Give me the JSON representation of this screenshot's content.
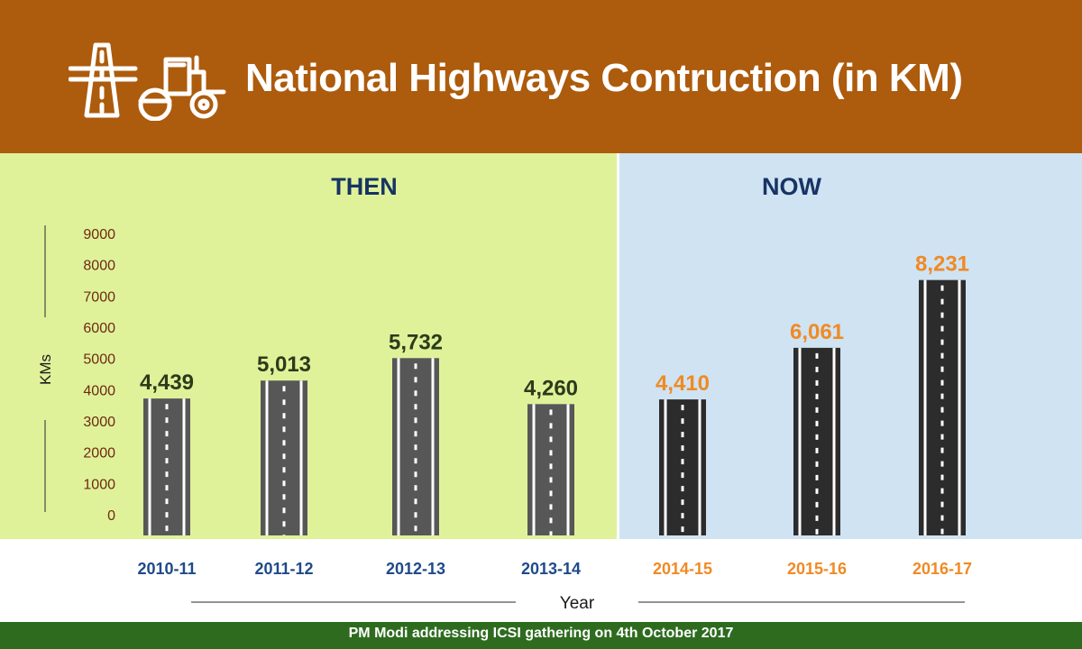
{
  "header": {
    "title": "National Highways Contruction (in KM)",
    "icon": "road-construction-icon"
  },
  "sections": {
    "then": "THEN",
    "now": "NOW"
  },
  "chart_data": {
    "type": "bar",
    "title": "National Highways Contruction (in KM)",
    "xlabel": "Year",
    "ylabel": "KMs",
    "ylim": [
      0,
      9000
    ],
    "yticks": [
      "0",
      "1000",
      "2000",
      "3000",
      "4000",
      "5000",
      "6000",
      "7000",
      "8000",
      "9000"
    ],
    "categories": [
      "2010-11",
      "2011-12",
      "2012-13",
      "2013-14",
      "2014-15",
      "2015-16",
      "2016-17"
    ],
    "values": [
      4439,
      5013,
      5732,
      4260,
      4410,
      6061,
      8231
    ],
    "value_labels": [
      "4,439",
      "5,013",
      "5,732",
      "4,260",
      "4,410",
      "6,061",
      "8,231"
    ],
    "groups": [
      "THEN",
      "THEN",
      "THEN",
      "THEN",
      "NOW",
      "NOW",
      "NOW"
    ]
  },
  "colors": {
    "header_bg": "#ad5b0d",
    "then_bg": "#dff29a",
    "now_bg": "#cfe3f3",
    "then_value": "#2d3a1a",
    "now_value": "#f08a24",
    "then_year": "#1f4a8a",
    "now_year": "#f08a24",
    "tick": "#6e2a12",
    "then_road": "#575757",
    "now_road": "#2c2c2c"
  },
  "footer": {
    "caption": "PM Modi addressing ICSI gathering on 4th October 2017"
  }
}
